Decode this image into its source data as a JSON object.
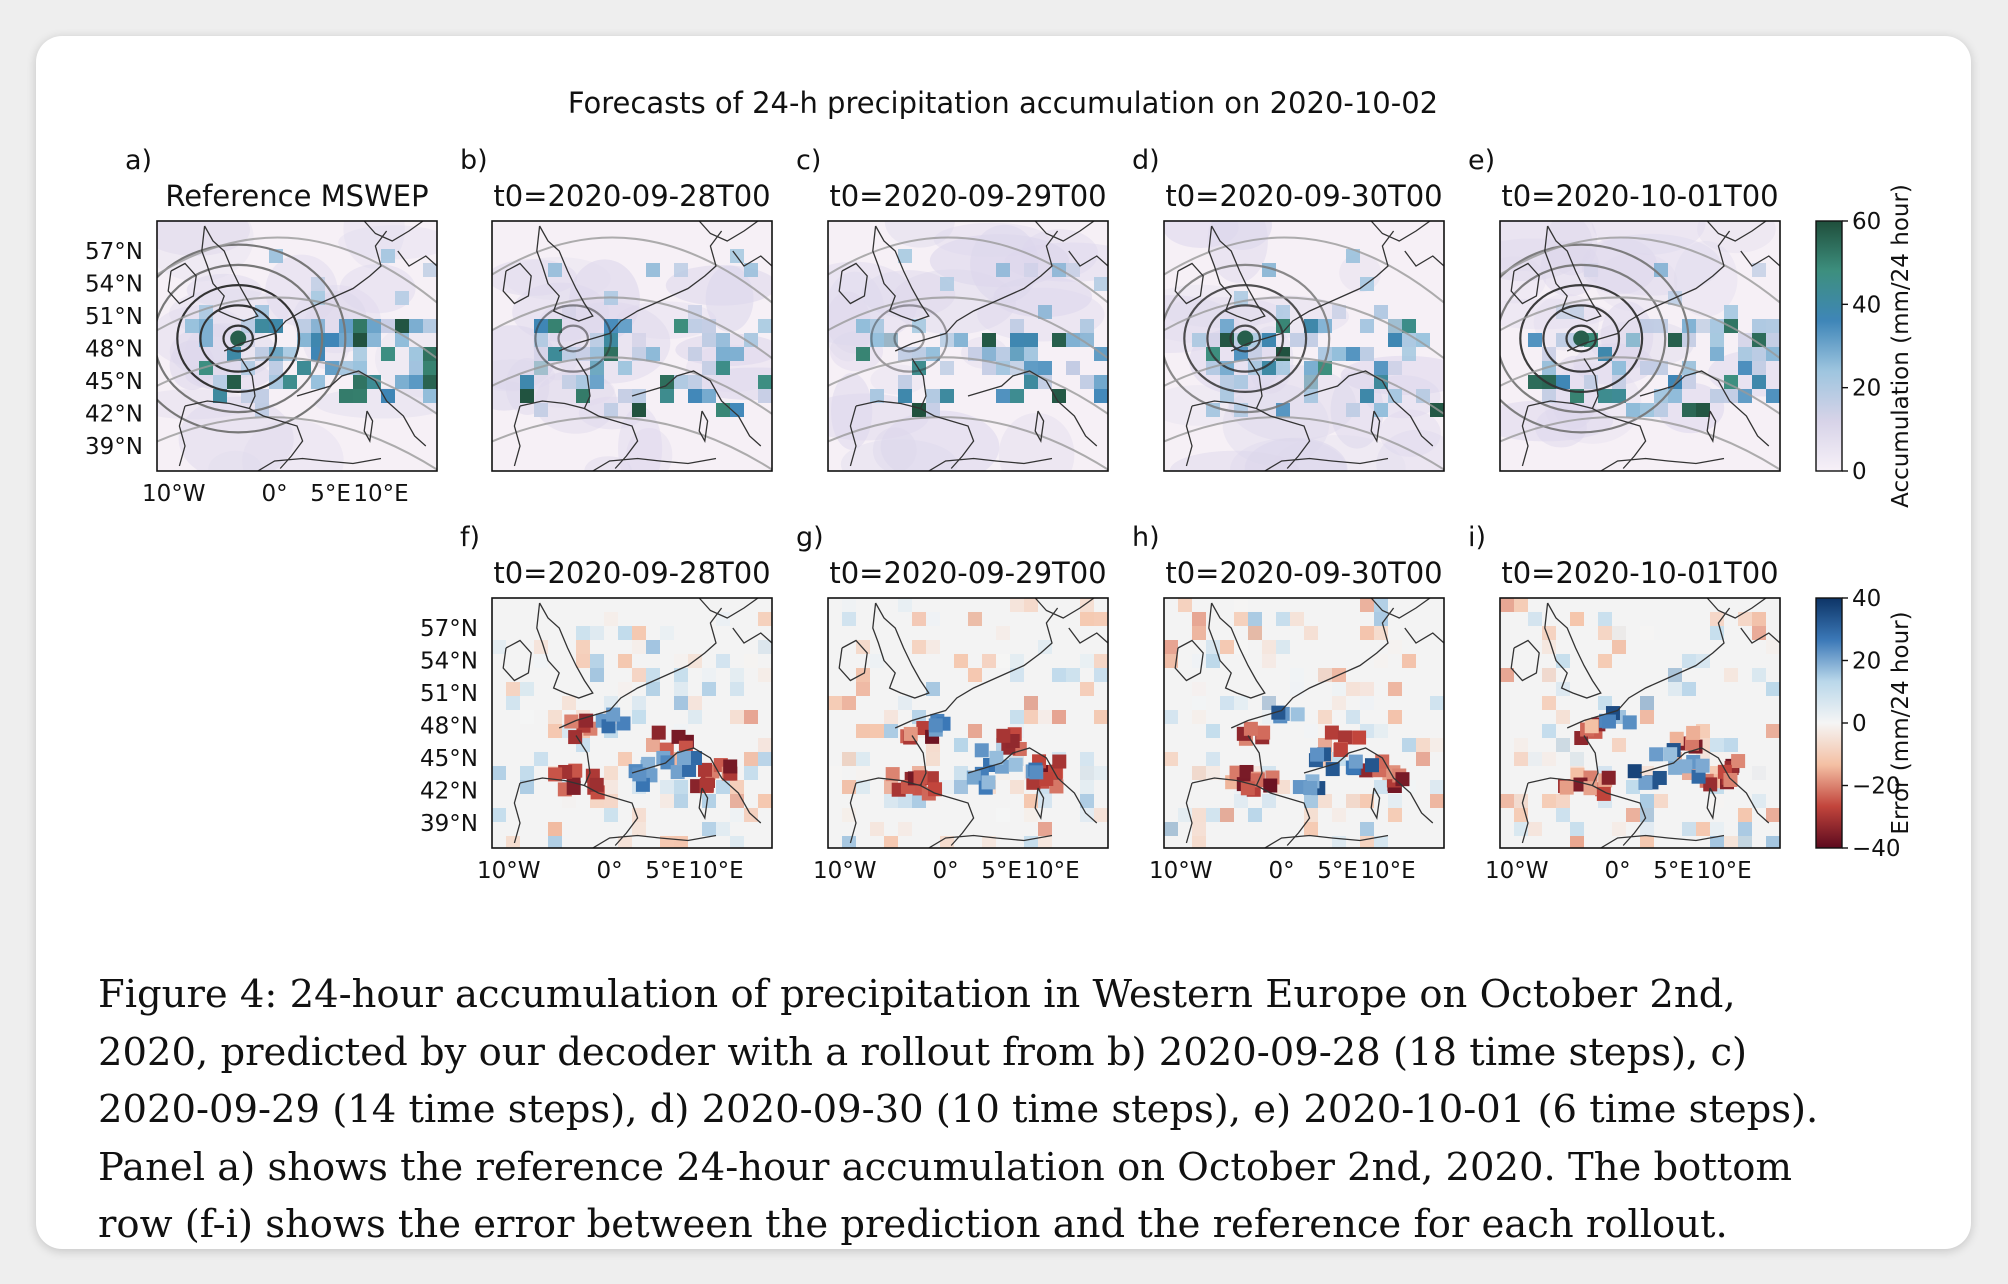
{
  "figure": {
    "suptitle": "Forecasts of 24-h precipitation accumulation on 2020-10-02",
    "panels": [
      {
        "letter": "a)",
        "title": "Reference MSWEP",
        "kind": "accum",
        "variant": "ref"
      },
      {
        "letter": "b)",
        "title": "t0=2020-09-28T00",
        "kind": "accum",
        "variant": "b"
      },
      {
        "letter": "c)",
        "title": "t0=2020-09-29T00",
        "kind": "accum",
        "variant": "c"
      },
      {
        "letter": "d)",
        "title": "t0=2020-09-30T00",
        "kind": "accum",
        "variant": "d"
      },
      {
        "letter": "e)",
        "title": "t0=2020-10-01T00",
        "kind": "accum",
        "variant": "e"
      },
      {
        "letter": "f)",
        "title": "t0=2020-09-28T00",
        "kind": "error",
        "variant": "f"
      },
      {
        "letter": "g)",
        "title": "t0=2020-09-29T00",
        "kind": "error",
        "variant": "g"
      },
      {
        "letter": "h)",
        "title": "t0=2020-09-30T00",
        "kind": "error",
        "variant": "h"
      },
      {
        "letter": "i)",
        "title": "t0=2020-10-01T00",
        "kind": "error",
        "variant": "i"
      }
    ],
    "lat_ticks": [
      "57°N",
      "54°N",
      "51°N",
      "48°N",
      "45°N",
      "42°N",
      "39°N"
    ],
    "lon_ticks": [
      "10°W",
      "0°",
      "5°E",
      "10°E"
    ],
    "colorbars": [
      {
        "label": "Accumulation (mm/24 hour)",
        "ticks": [
          "60",
          "40",
          "20",
          "0"
        ],
        "colors": [
          "#1f4e3b",
          "#3d8f7e",
          "#3f86b8",
          "#9ec5df",
          "#d7d3e8",
          "#f7f1f8"
        ]
      },
      {
        "label": "Error (mm/24 hour)",
        "ticks": [
          "40",
          "20",
          "0",
          "−20",
          "−40"
        ],
        "colors": [
          "#0d3466",
          "#3b78b7",
          "#b9d7ea",
          "#f5f5f5",
          "#f4c0a4",
          "#c2453c",
          "#5c0a1e"
        ]
      }
    ]
  },
  "caption": {
    "lines": [
      "Figure  4: 24-hour accumulation of precipitation in Western Europe on October 2nd,",
      "2020, predicted by our decoder with a rollout from b) 2020-09-28 (18 time steps), c)",
      "2020-09-29 (14 time steps), d) 2020-09-30 (10 time steps), e) 2020-10-01 (6 time steps).",
      "Panel a) shows the reference 24-hour accumulation on October 2nd, 2020. The bottom",
      "row (f-i) shows the error between the prediction and the reference for each rollout."
    ]
  }
}
